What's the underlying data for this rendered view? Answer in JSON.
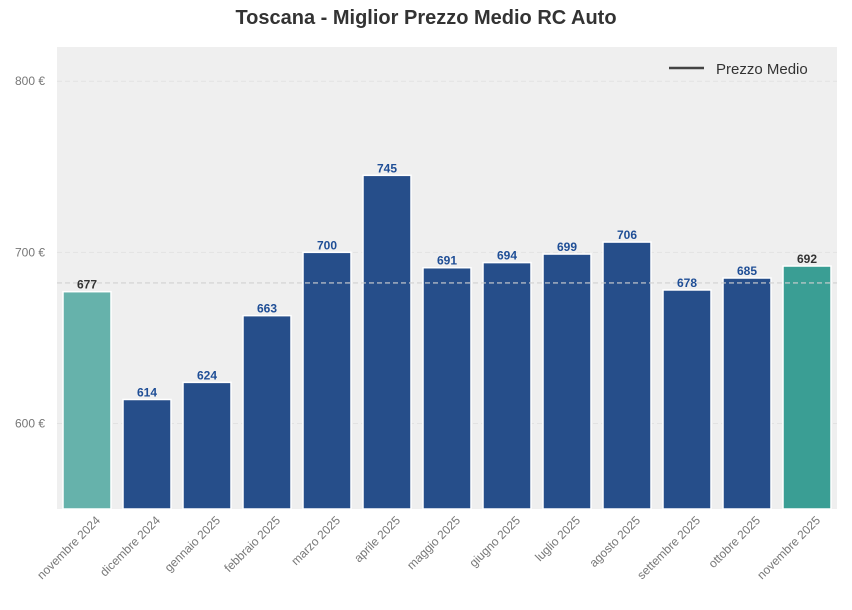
{
  "chart_data": {
    "type": "bar",
    "title": "Toscana - Miglior Prezzo Medio RC Auto",
    "categories": [
      "novembre 2024",
      "dicembre 2024",
      "gennaio 2025",
      "febbraio 2025",
      "marzo 2025",
      "aprile 2025",
      "maggio 2025",
      "giugno 2025",
      "luglio 2025",
      "agosto 2025",
      "settembre 2025",
      "ottobre 2025",
      "novembre 2025"
    ],
    "values": [
      677,
      614,
      624,
      663,
      700,
      745,
      691,
      694,
      699,
      706,
      678,
      685,
      692
    ],
    "value_labels": [
      "677",
      "614",
      "624",
      "663",
      "700",
      "745",
      "691",
      "694",
      "699",
      "706",
      "678",
      "685",
      "692"
    ],
    "bar_colors": [
      "#66b2ab",
      "#264e8a",
      "#264e8a",
      "#264e8a",
      "#264e8a",
      "#264e8a",
      "#264e8a",
      "#264e8a",
      "#264e8a",
      "#264e8a",
      "#264e8a",
      "#264e8a",
      "#3a9e94"
    ],
    "label_colors": [
      "#333333",
      "#1f4e96",
      "#1f4e96",
      "#1f4e96",
      "#1f4e96",
      "#1f4e96",
      "#1f4e96",
      "#1f4e96",
      "#1f4e96",
      "#1f4e96",
      "#1f4e96",
      "#1f4e96",
      "#333333"
    ],
    "y_ticks": [
      600,
      700,
      800
    ],
    "y_tick_labels": [
      "600 €",
      "700 €",
      "800 €"
    ],
    "ylim": [
      550,
      820
    ],
    "mean_line": 682.1,
    "legend": {
      "label": "Prezzo Medio",
      "placement": "top-right"
    },
    "grid": true,
    "xlabel": "",
    "ylabel": ""
  }
}
